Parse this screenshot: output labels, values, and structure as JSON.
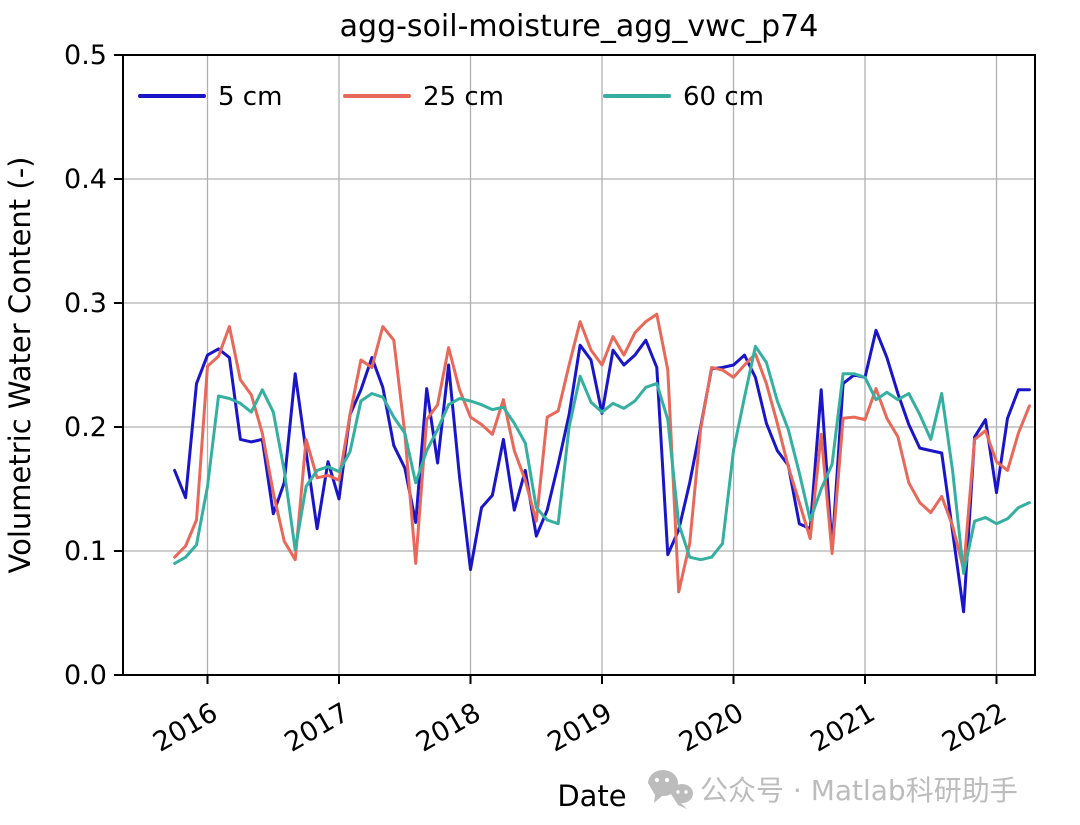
{
  "title": "agg-soil-moisture_agg_vwc_p74",
  "watermark": {
    "icon": "wechat-icon",
    "text": "公众号 · Matlab科研助手",
    "color": "#bcbcbc"
  },
  "chart_data": {
    "type": "line",
    "title": "agg-soil-moisture_agg_vwc_p74",
    "xlabel": "Date",
    "ylabel": "Volumetric Water Content (-)",
    "ylim": [
      0.0,
      0.5
    ],
    "yticks": [
      0.0,
      0.1,
      0.2,
      0.3,
      0.4,
      0.5
    ],
    "ytick_labels": [
      "0.0",
      "0.1",
      "0.2",
      "0.3",
      "0.4",
      "0.5"
    ],
    "xticks": [
      2016,
      2017,
      2018,
      2019,
      2020,
      2021,
      2022
    ],
    "xtick_labels": [
      "2016",
      "2017",
      "2018",
      "2019",
      "2020",
      "2021",
      "2022"
    ],
    "grid": true,
    "grid_color": "#b0b0b0",
    "legend_position": "upper-left-inside-row",
    "x_start": "2015-10",
    "x_step_months": 1,
    "series": [
      {
        "name": "5 cm",
        "color": "#1a16c8",
        "values": [
          0.165,
          0.143,
          0.235,
          0.258,
          0.263,
          0.256,
          0.19,
          0.188,
          0.19,
          0.13,
          0.155,
          0.243,
          0.18,
          0.118,
          0.172,
          0.142,
          0.21,
          0.23,
          0.256,
          0.232,
          0.185,
          0.167,
          0.123,
          0.231,
          0.171,
          0.25,
          0.16,
          0.085,
          0.135,
          0.145,
          0.19,
          0.133,
          0.165,
          0.112,
          0.133,
          0.17,
          0.21,
          0.266,
          0.254,
          0.211,
          0.262,
          0.25,
          0.258,
          0.27,
          0.248,
          0.097,
          0.117,
          0.155,
          0.2,
          0.247,
          0.248,
          0.25,
          0.258,
          0.24,
          0.203,
          0.181,
          0.169,
          0.122,
          0.118,
          0.23,
          0.102,
          0.235,
          0.242,
          0.24,
          0.278,
          0.256,
          0.227,
          0.202,
          0.183,
          0.181,
          0.179,
          0.115,
          0.051,
          0.192,
          0.206,
          0.147,
          0.207,
          0.23,
          0.23
        ]
      },
      {
        "name": "25 cm",
        "color": "#e8695a",
        "values": [
          0.095,
          0.104,
          0.125,
          0.249,
          0.257,
          0.281,
          0.238,
          0.226,
          0.195,
          0.147,
          0.108,
          0.093,
          0.19,
          0.159,
          0.161,
          0.157,
          0.21,
          0.254,
          0.248,
          0.281,
          0.27,
          0.195,
          0.09,
          0.206,
          0.218,
          0.264,
          0.23,
          0.208,
          0.202,
          0.194,
          0.222,
          0.181,
          0.157,
          0.124,
          0.208,
          0.213,
          0.25,
          0.285,
          0.262,
          0.25,
          0.273,
          0.258,
          0.276,
          0.285,
          0.291,
          0.246,
          0.067,
          0.106,
          0.198,
          0.248,
          0.246,
          0.24,
          0.25,
          0.259,
          0.235,
          0.203,
          0.168,
          0.139,
          0.11,
          0.194,
          0.098,
          0.207,
          0.208,
          0.206,
          0.231,
          0.207,
          0.192,
          0.155,
          0.139,
          0.131,
          0.144,
          0.12,
          0.085,
          0.19,
          0.197,
          0.172,
          0.165,
          0.195,
          0.217
        ]
      },
      {
        "name": "60 cm",
        "color": "#35b0a0",
        "values": [
          0.09,
          0.095,
          0.105,
          0.152,
          0.225,
          0.223,
          0.219,
          0.212,
          0.23,
          0.212,
          0.165,
          0.101,
          0.152,
          0.165,
          0.168,
          0.164,
          0.18,
          0.221,
          0.227,
          0.224,
          0.208,
          0.195,
          0.155,
          0.181,
          0.198,
          0.218,
          0.223,
          0.221,
          0.218,
          0.214,
          0.216,
          0.203,
          0.187,
          0.135,
          0.125,
          0.122,
          0.2,
          0.241,
          0.22,
          0.212,
          0.219,
          0.215,
          0.221,
          0.232,
          0.235,
          0.206,
          0.122,
          0.095,
          0.093,
          0.095,
          0.106,
          0.181,
          0.224,
          0.265,
          0.252,
          0.221,
          0.198,
          0.163,
          0.125,
          0.15,
          0.17,
          0.243,
          0.243,
          0.24,
          0.222,
          0.228,
          0.222,
          0.227,
          0.21,
          0.19,
          0.227,
          0.164,
          0.082,
          0.124,
          0.127,
          0.122,
          0.126,
          0.135,
          0.139
        ]
      }
    ]
  }
}
